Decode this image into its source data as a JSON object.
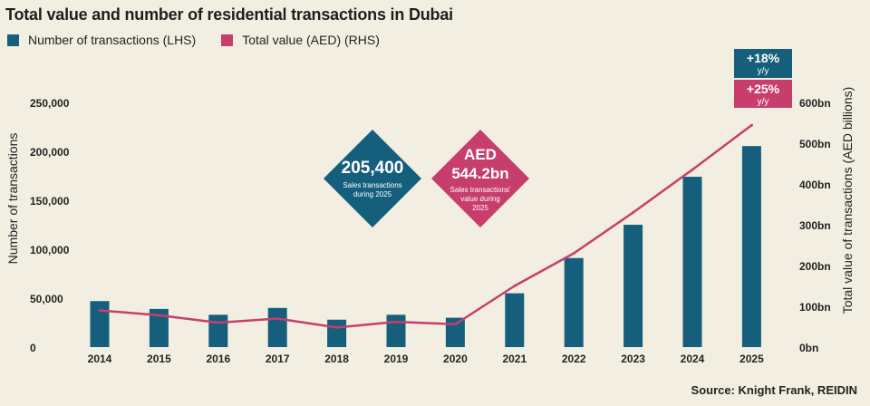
{
  "colors": {
    "bar": "#155f7d",
    "line": "#c73e6c",
    "background": "#f2efe2"
  },
  "legend": {
    "bars_label": "Number of transactions (LHS)",
    "line_label": "Total value (AED) (RHS)"
  },
  "source": "Source: Knight Frank, REIDIN",
  "callouts": {
    "transactions": {
      "value": "205,400",
      "caption_line1": "Sales transactions",
      "caption_line2": "during 2025"
    },
    "value": {
      "value_line1": "AED",
      "value_line2": "544.2bn",
      "caption_line1": "Sales transactions'",
      "caption_line2": "value during",
      "caption_line3": "2025"
    },
    "growth_transactions": {
      "value": "+18%",
      "unit": "y/y"
    },
    "growth_value": {
      "value": "+25%",
      "unit": "y/y"
    }
  },
  "chart_data": {
    "type": "bar",
    "title": "Total value and number of residential transactions in Dubai",
    "categories": [
      "2014",
      "2015",
      "2016",
      "2017",
      "2018",
      "2019",
      "2020",
      "2021",
      "2022",
      "2023",
      "2024",
      "2025"
    ],
    "series": [
      {
        "name": "Number of transactions (LHS)",
        "type": "bar",
        "axis": "left",
        "values": [
          47000,
          39000,
          33000,
          40000,
          28000,
          33000,
          30000,
          55000,
          91000,
          125000,
          174000,
          205400
        ]
      },
      {
        "name": "Total value (AED) (RHS)",
        "type": "line",
        "axis": "right",
        "values": [
          90,
          78,
          60,
          70,
          48,
          62,
          56,
          150,
          230,
          330,
          435,
          544.2
        ]
      }
    ],
    "ylabel": "Number of transactions",
    "ylabel_right": "Total value of transactions (AED billions)",
    "ylim": [
      0,
      250000
    ],
    "ylim_right": [
      0,
      600
    ],
    "yticks": [
      {
        "value": 0,
        "label": "0"
      },
      {
        "value": 50000,
        "label": "50,000"
      },
      {
        "value": 100000,
        "label": "100,000"
      },
      {
        "value": 150000,
        "label": "150,000"
      },
      {
        "value": 200000,
        "label": "200,000"
      },
      {
        "value": 250000,
        "label": "250,000"
      }
    ],
    "yticks_right": [
      {
        "value": 0,
        "label": "0bn"
      },
      {
        "value": 100,
        "label": "100bn"
      },
      {
        "value": 200,
        "label": "200bn"
      },
      {
        "value": 300,
        "label": "300bn"
      },
      {
        "value": 400,
        "label": "400bn"
      },
      {
        "value": 500,
        "label": "500bn"
      },
      {
        "value": 600,
        "label": "600bn"
      }
    ],
    "grid": false
  }
}
